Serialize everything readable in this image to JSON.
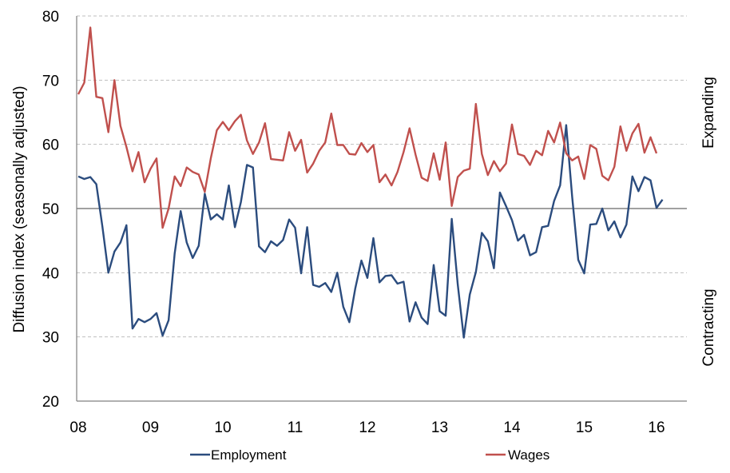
{
  "chart_data": {
    "type": "line",
    "title": "",
    "xlabel": "",
    "ylabel": "Diffusion index (seasonally adjusted)",
    "ylim": [
      20,
      80
    ],
    "y_ticks": [
      "20",
      "30",
      "40",
      "50",
      "60",
      "70",
      "80"
    ],
    "x_tick_labels": [
      "08",
      "09",
      "10",
      "11",
      "12",
      "13",
      "14",
      "15",
      "16"
    ],
    "x_start": 2008.0,
    "x_step_months": 1,
    "right_labels": {
      "top": "Expanding",
      "bottom": "Contracting"
    },
    "grid": "horizontal dashed",
    "legend_position": "bottom",
    "colors": {
      "employment": "#2b4c7e",
      "wages": "#c0504d",
      "grid": "#bfbfbf",
      "axis": "#808080"
    },
    "series": [
      {
        "name": "Employment",
        "color": "#2b4c7e",
        "values": [
          55.0,
          54.6,
          54.9,
          53.8,
          47.2,
          40.0,
          43.3,
          44.7,
          47.4,
          31.3,
          32.8,
          32.3,
          32.8,
          33.7,
          30.2,
          32.6,
          43.0,
          49.6,
          44.7,
          42.3,
          44.2,
          52.3,
          48.3,
          49.1,
          48.3,
          53.6,
          47.1,
          51.0,
          56.8,
          56.4,
          44.1,
          43.2,
          44.9,
          44.2,
          45.1,
          48.3,
          47.0,
          39.9,
          47.1,
          38.1,
          37.8,
          38.4,
          37.0,
          40.0,
          34.7,
          32.3,
          37.6,
          41.9,
          39.2,
          45.4,
          38.5,
          39.5,
          39.6,
          38.3,
          38.6,
          32.4,
          35.4,
          33.0,
          32.0,
          41.2,
          34.0,
          33.3,
          48.4,
          38.2,
          29.9,
          36.6,
          40.1,
          46.2,
          44.9,
          40.7,
          52.5,
          50.4,
          48.2,
          45.0,
          45.9,
          42.7,
          43.2,
          47.1,
          47.3,
          51.2,
          53.6,
          63.0,
          51.8,
          42.0,
          39.9,
          47.5,
          47.6,
          50.0,
          46.6,
          48.0,
          45.5,
          47.5,
          55.0,
          52.7,
          54.9,
          54.4,
          50.1,
          51.4
        ]
      },
      {
        "name": "Wages",
        "color": "#c0504d",
        "values": [
          67.8,
          69.6,
          78.2,
          67.4,
          67.2,
          61.9,
          70.0,
          62.9,
          59.6,
          55.8,
          58.8,
          54.1,
          56.2,
          57.8,
          47.0,
          50.0,
          55.0,
          53.5,
          56.4,
          55.7,
          55.3,
          52.6,
          57.8,
          62.2,
          63.5,
          62.2,
          63.6,
          64.6,
          60.6,
          58.5,
          60.3,
          63.3,
          57.7,
          57.6,
          57.5,
          61.9,
          59.0,
          60.7,
          55.6,
          57.0,
          59.0,
          60.3,
          64.8,
          59.9,
          59.9,
          58.5,
          58.4,
          60.2,
          58.8,
          59.9,
          54.1,
          55.3,
          53.6,
          55.7,
          58.8,
          62.5,
          58.4,
          54.8,
          54.3,
          58.6,
          54.5,
          60.3,
          50.4,
          54.9,
          55.9,
          56.2,
          66.3,
          58.5,
          55.2,
          57.4,
          55.8,
          57.0,
          63.1,
          58.5,
          58.2,
          56.8,
          59.0,
          58.3,
          62.1,
          60.3,
          63.4,
          58.6,
          57.5,
          58.1,
          54.6,
          59.9,
          59.3,
          55.1,
          54.4,
          56.5,
          62.8,
          59.0,
          61.7,
          63.2,
          58.7,
          61.1,
          58.6
        ]
      }
    ]
  }
}
